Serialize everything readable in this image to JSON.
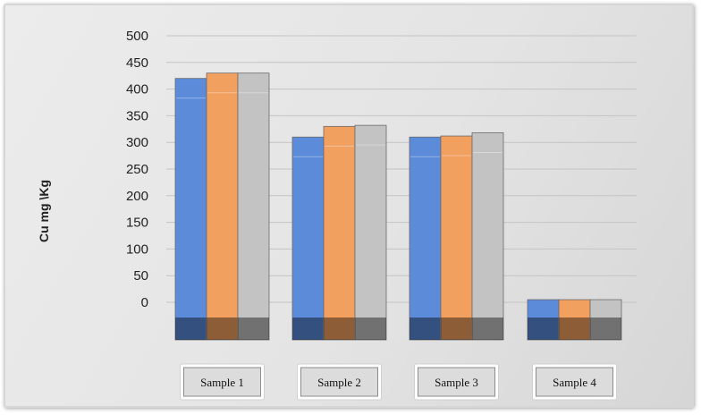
{
  "chart_data": {
    "type": "bar",
    "title": "",
    "xlabel": "",
    "ylabel": "Cu mg \\Kg",
    "categories": [
      "Sample 1",
      "Sample 2",
      "Sample 3",
      "Sample 4"
    ],
    "series": [
      {
        "color": "#5b8bd9",
        "values": [
          420,
          310,
          310,
          5
        ]
      },
      {
        "color": "#f2a060",
        "values": [
          430,
          330,
          312,
          5
        ]
      },
      {
        "color": "#c3c3c3",
        "values": [
          430,
          332,
          318,
          5
        ]
      }
    ],
    "ylim": [
      0,
      500
    ],
    "yticks": [
      "0",
      "50",
      "100",
      "150",
      "200",
      "250",
      "300",
      "350",
      "400",
      "450",
      "500"
    ],
    "grid": true,
    "legend": "none"
  }
}
